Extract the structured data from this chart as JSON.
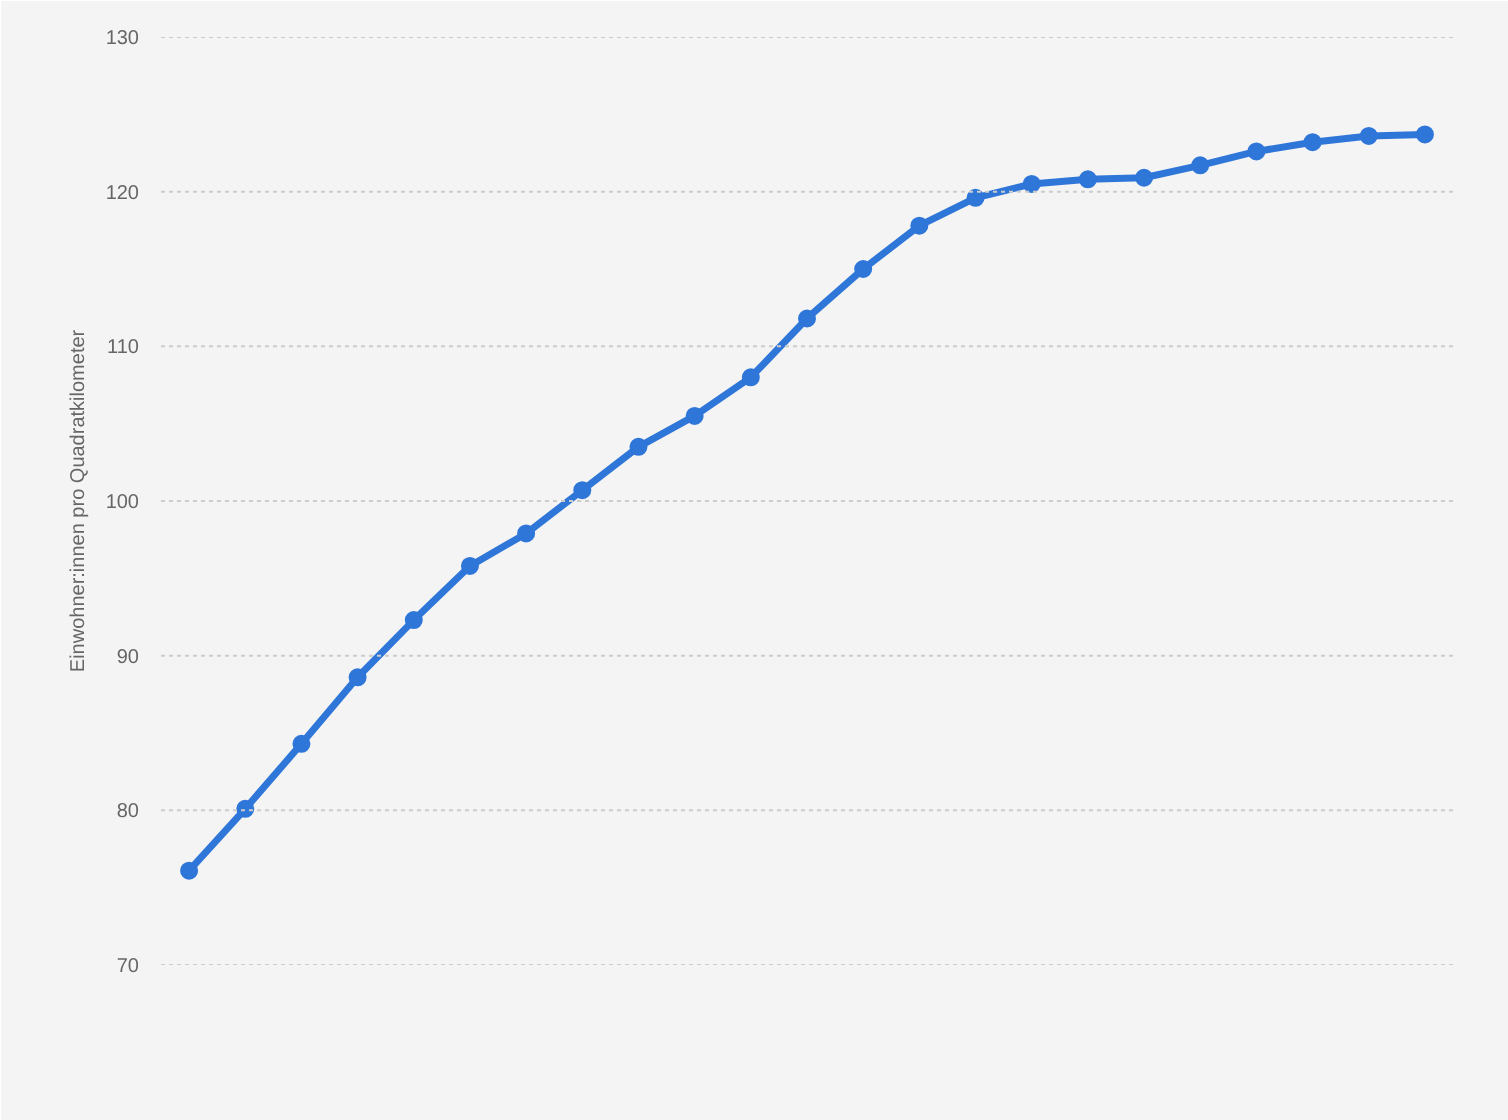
{
  "chart_data": {
    "type": "line",
    "ylabel": "Einwohner:innen pro Quadratkilometer",
    "categories": [
      null,
      null,
      null,
      null,
      null,
      null,
      null,
      null,
      null,
      null,
      null,
      null,
      null,
      null,
      null,
      null,
      null,
      null,
      null,
      null,
      null,
      null,
      null
    ],
    "series": [
      {
        "color": "#2f76d9",
        "values": [
          76.1,
          80.1,
          84.3,
          88.6,
          92.3,
          95.8,
          97.9,
          100.7,
          103.5,
          105.5,
          108.0,
          111.8,
          115.0,
          117.8,
          119.6,
          120.5,
          120.8,
          120.9,
          121.7,
          122.6,
          123.2,
          123.6,
          123.7
        ]
      }
    ],
    "ylim": [
      70,
      130
    ],
    "yticks": [
      70,
      80,
      90,
      100,
      110,
      120,
      130
    ],
    "grid": "y",
    "marker": "circle",
    "line_style": "solid"
  }
}
